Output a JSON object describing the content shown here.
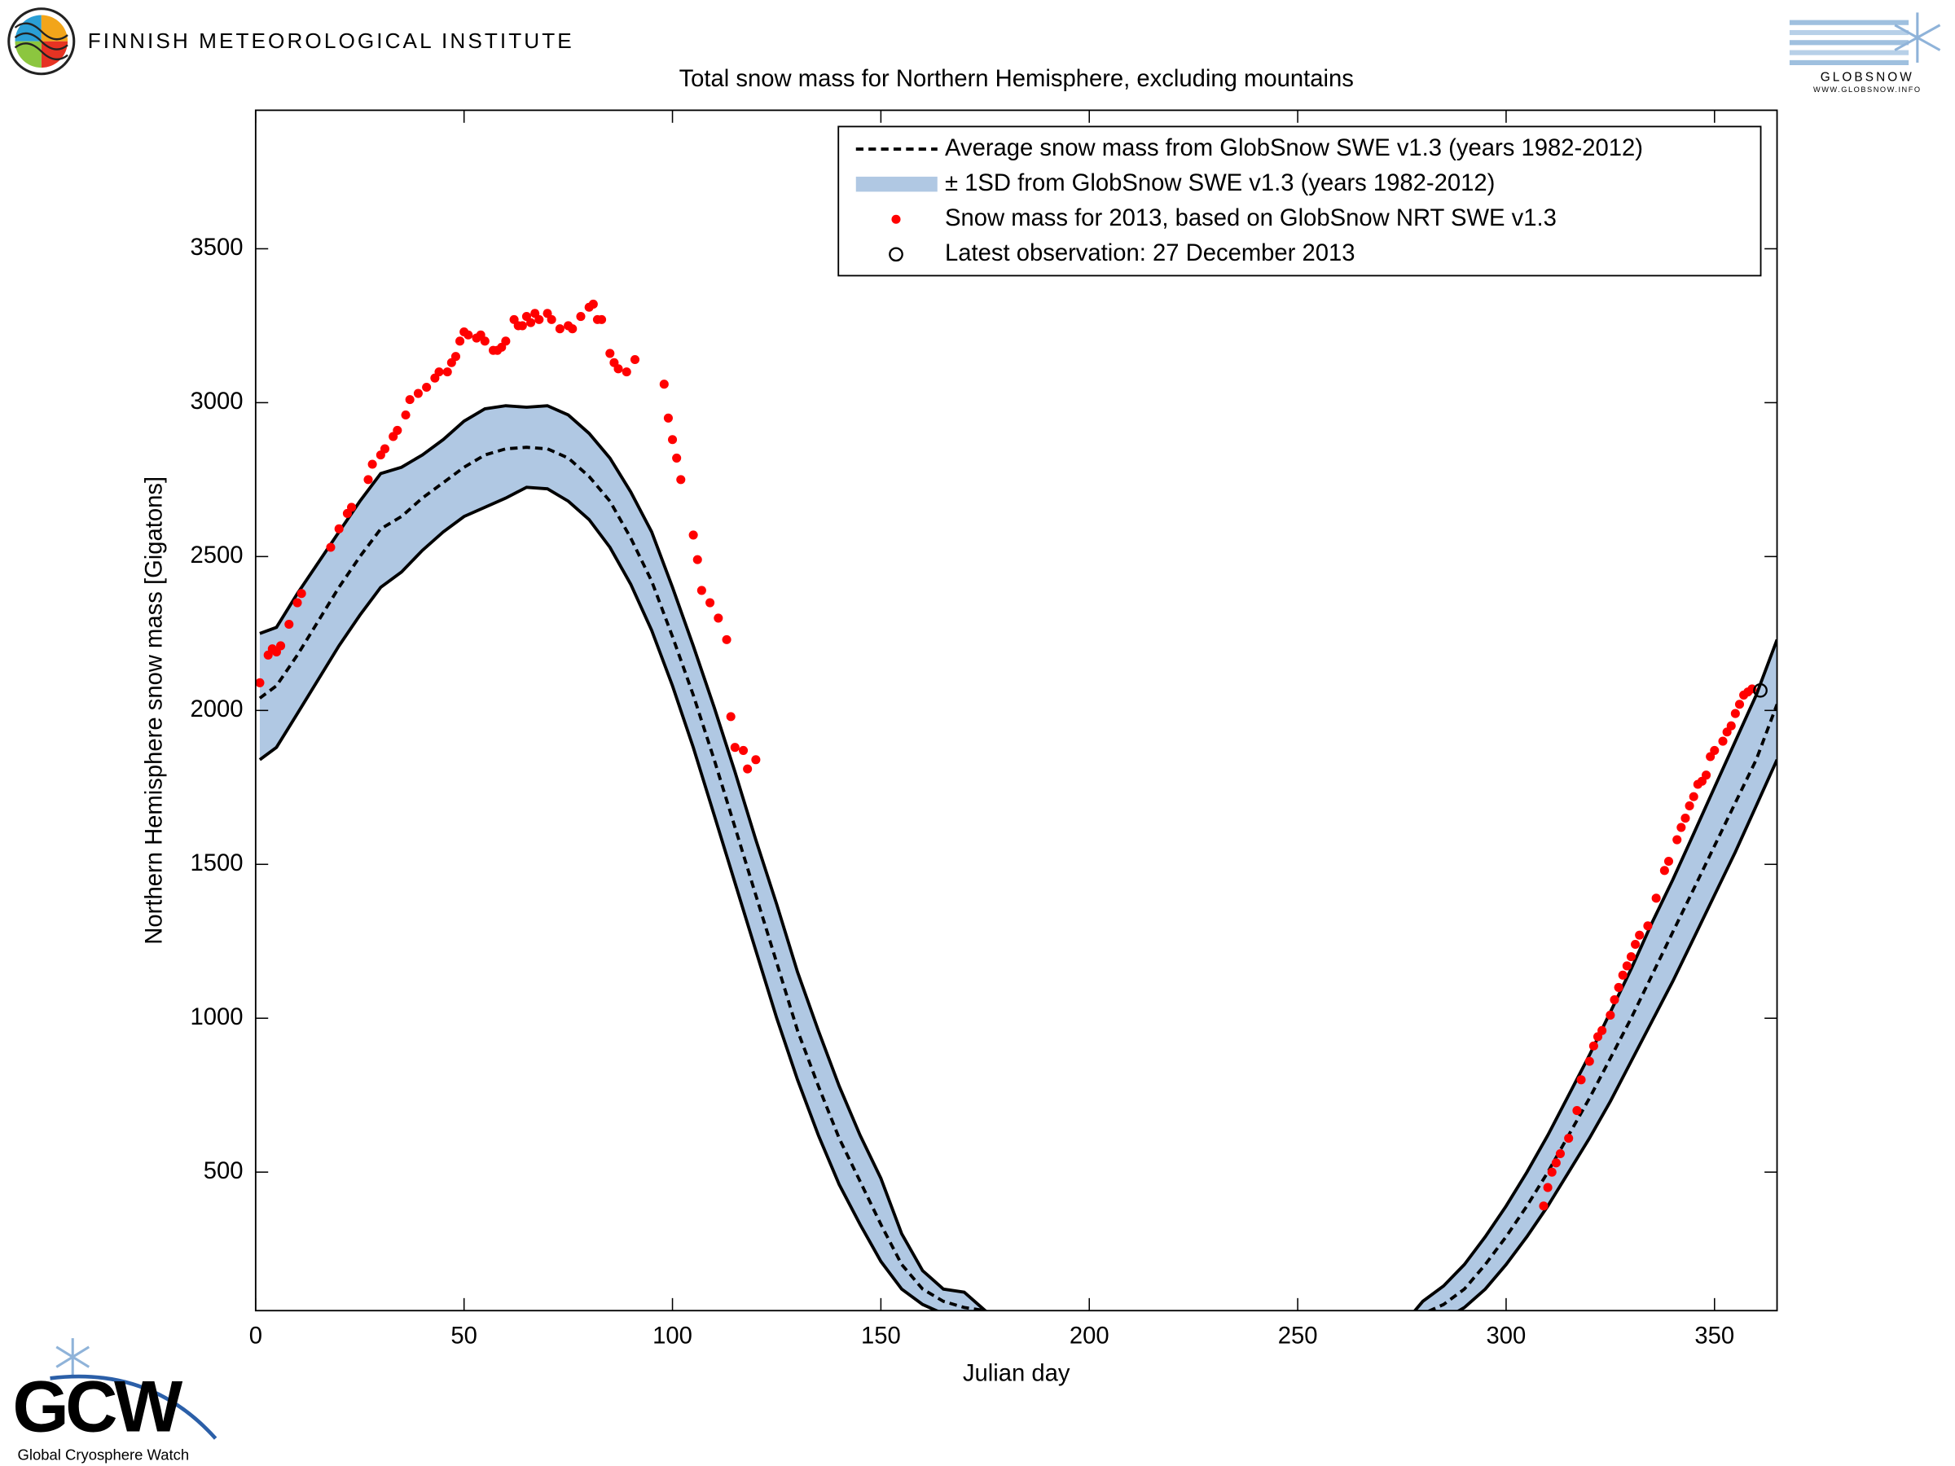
{
  "header": {
    "institute": "FINNISH METEOROLOGICAL INSTITUTE",
    "logo_right": "GLOBSNOW",
    "logo_right_url": "WWW.GLOBSNOW.INFO"
  },
  "footer": {
    "logo": "GCW",
    "logo_caption": "Global Cryosphere Watch"
  },
  "chart_data": {
    "type": "line",
    "title": "Total snow mass for Northern Hemisphere, excluding mountains",
    "x_label": "Julian day",
    "y_label": "Northern Hemisphere snow mass [Gigatons]",
    "xlim": [
      0,
      365
    ],
    "ylim": [
      50,
      3950
    ],
    "xticks": [
      0,
      50,
      100,
      150,
      200,
      250,
      300,
      350
    ],
    "yticks": [
      500,
      1000,
      1500,
      2000,
      2500,
      3000,
      3500
    ],
    "legend_position": "upper right",
    "x": [
      1,
      5,
      10,
      15,
      20,
      25,
      30,
      35,
      40,
      45,
      50,
      55,
      60,
      65,
      70,
      75,
      80,
      85,
      90,
      95,
      100,
      105,
      110,
      115,
      120,
      125,
      130,
      135,
      140,
      145,
      150,
      155,
      160,
      165,
      170,
      175,
      180,
      275,
      280,
      285,
      290,
      295,
      300,
      305,
      310,
      315,
      320,
      325,
      330,
      335,
      340,
      345,
      350,
      355,
      360,
      365
    ],
    "series": [
      {
        "name": "Average snow mass from GlobSnow SWE v1.3 (years 1982-2012)",
        "color": "#000000",
        "style": "dashed",
        "values": [
          2040,
          2080,
          2180,
          2290,
          2400,
          2500,
          2590,
          2630,
          2690,
          2740,
          2790,
          2830,
          2850,
          2855,
          2850,
          2820,
          2760,
          2680,
          2560,
          2420,
          2240,
          2050,
          1840,
          1620,
          1400,
          1180,
          960,
          780,
          610,
          470,
          330,
          200,
          120,
          80,
          60,
          50,
          0,
          0,
          40,
          70,
          120,
          200,
          290,
          390,
          500,
          620,
          740,
          870,
          1000,
          1140,
          1280,
          1420,
          1560,
          1700,
          1840,
          2020
        ]
      },
      {
        "name": "± 1SD from GlobSnow SWE v1.3 (years 1982-2012)",
        "color": "#b0c8e3",
        "style": "band",
        "upper": [
          2250,
          2270,
          2380,
          2480,
          2580,
          2680,
          2770,
          2790,
          2830,
          2880,
          2940,
          2980,
          2990,
          2985,
          2990,
          2960,
          2900,
          2820,
          2710,
          2580,
          2400,
          2210,
          2010,
          1800,
          1580,
          1370,
          1150,
          960,
          780,
          620,
          480,
          300,
          180,
          120,
          110,
          50,
          0,
          0,
          80,
          130,
          200,
          290,
          390,
          500,
          620,
          750,
          880,
          1020,
          1160,
          1310,
          1450,
          1600,
          1750,
          1900,
          2050,
          2230
        ],
        "lower": [
          1840,
          1880,
          1990,
          2100,
          2210,
          2310,
          2400,
          2450,
          2520,
          2580,
          2630,
          2660,
          2690,
          2725,
          2720,
          2680,
          2620,
          2530,
          2410,
          2260,
          2080,
          1880,
          1660,
          1440,
          1220,
          1000,
          800,
          620,
          460,
          330,
          210,
          120,
          70,
          40,
          20,
          0,
          0,
          0,
          0,
          20,
          60,
          120,
          200,
          290,
          390,
          500,
          610,
          730,
          860,
          990,
          1120,
          1260,
          1400,
          1540,
          1690,
          1840
        ]
      },
      {
        "name": "Snow mass for 2013, based on GlobSnow NRT SWE v1.3",
        "color": "#ff0000",
        "style": "dots",
        "x": [
          1,
          3,
          4,
          5,
          6,
          8,
          10,
          11,
          18,
          20,
          22,
          23,
          27,
          28,
          30,
          31,
          33,
          34,
          36,
          37,
          39,
          41,
          43,
          44,
          46,
          47,
          48,
          49,
          50,
          51,
          53,
          54,
          55,
          57,
          58,
          59,
          60,
          62,
          63,
          64,
          65,
          66,
          67,
          68,
          70,
          71,
          73,
          75,
          76,
          78,
          80,
          81,
          82,
          83,
          85,
          86,
          87,
          89,
          91,
          98,
          99,
          100,
          101,
          102,
          105,
          106,
          107,
          109,
          111,
          113,
          114,
          115,
          117,
          118,
          120,
          309,
          310,
          311,
          312,
          313,
          315,
          317,
          318,
          320,
          321,
          322,
          323,
          325,
          326,
          327,
          328,
          329,
          330,
          331,
          332,
          334,
          336,
          338,
          339,
          341,
          342,
          343,
          344,
          345,
          346,
          347,
          348,
          349,
          350,
          352,
          353,
          354,
          355,
          356,
          357,
          358,
          359
        ],
        "values": [
          2090,
          2180,
          2200,
          2190,
          2210,
          2280,
          2350,
          2380,
          2530,
          2590,
          2640,
          2660,
          2750,
          2800,
          2830,
          2850,
          2890,
          2910,
          2960,
          3010,
          3030,
          3050,
          3080,
          3100,
          3100,
          3130,
          3150,
          3200,
          3230,
          3220,
          3210,
          3220,
          3200,
          3170,
          3170,
          3180,
          3200,
          3270,
          3250,
          3250,
          3280,
          3260,
          3290,
          3270,
          3290,
          3270,
          3240,
          3250,
          3240,
          3280,
          3310,
          3320,
          3270,
          3270,
          3160,
          3130,
          3110,
          3100,
          3140,
          3060,
          2950,
          2880,
          2820,
          2750,
          2570,
          2490,
          2390,
          2350,
          2300,
          2230,
          1980,
          1880,
          1870,
          1810,
          1840,
          390,
          450,
          500,
          530,
          560,
          610,
          700,
          800,
          860,
          910,
          940,
          960,
          1010,
          1060,
          1100,
          1140,
          1170,
          1200,
          1240,
          1270,
          1300,
          1390,
          1480,
          1510,
          1580,
          1620,
          1650,
          1690,
          1720,
          1760,
          1770,
          1790,
          1850,
          1870,
          1900,
          1930,
          1950,
          1990,
          2020,
          2050,
          2060,
          2070
        ]
      },
      {
        "name": "Latest observation: 27 December 2013",
        "color": "#000000",
        "style": "open-circle",
        "x": [
          361
        ],
        "values": [
          2065
        ]
      }
    ]
  }
}
